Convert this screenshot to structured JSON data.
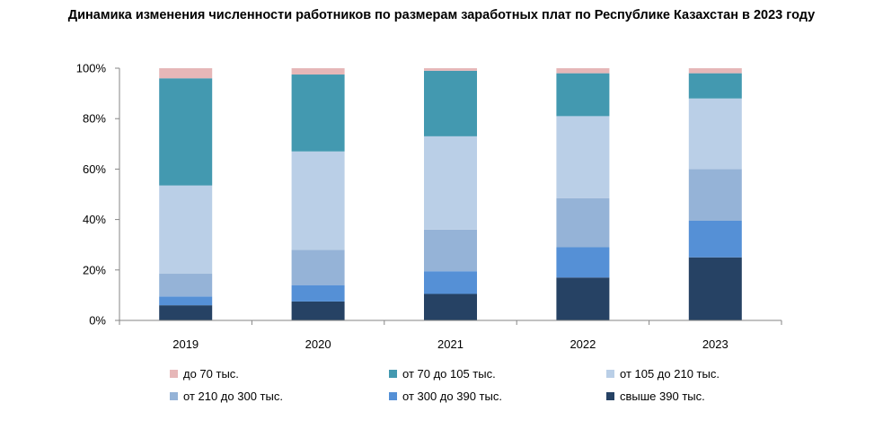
{
  "chart_data": {
    "type": "bar",
    "stacked": true,
    "title": "Динамика изменения численности работников по размерам заработных плат по Республике Казахстан в 2023 году",
    "categories": [
      "2019",
      "2020",
      "2021",
      "2022",
      "2023"
    ],
    "ylim": [
      0,
      100
    ],
    "yticks": [
      "0%",
      "20%",
      "40%",
      "60%",
      "80%",
      "100%"
    ],
    "yticks_values": [
      0,
      20,
      40,
      60,
      80,
      100
    ],
    "grid": false,
    "legend_position": "bottom",
    "series": [
      {
        "name": "свыше 390 тыс.",
        "color": "#264264",
        "values": [
          6,
          7.5,
          10.5,
          17,
          25
        ]
      },
      {
        "name": "от 300 до 390 тыс.",
        "color": "#5590D6",
        "values": [
          3.5,
          6.5,
          9,
          12,
          14.5
        ]
      },
      {
        "name": "от 210 до 300 тыс.",
        "color": "#95B3D7",
        "values": [
          9,
          14,
          16.5,
          19.5,
          20.5
        ]
      },
      {
        "name": "от 105 до 210 тыс.",
        "color": "#BACFE7",
        "values": [
          35,
          39,
          37,
          32.5,
          28
        ]
      },
      {
        "name": "от 70 до 105 тыс.",
        "color": "#4399B0",
        "values": [
          42.5,
          30.5,
          26,
          17,
          10
        ]
      },
      {
        "name": "до 70 тыс.",
        "color": "#E6B7B8",
        "values": [
          4,
          2.5,
          1,
          2,
          2
        ]
      }
    ],
    "legend_order": [
      "до 70 тыс.",
      "от 70 до 105 тыс.",
      "от 105 до 210 тыс.",
      "от 210 до 300 тыс.",
      "от 300 до 390 тыс.",
      "свыше 390 тыс."
    ]
  }
}
